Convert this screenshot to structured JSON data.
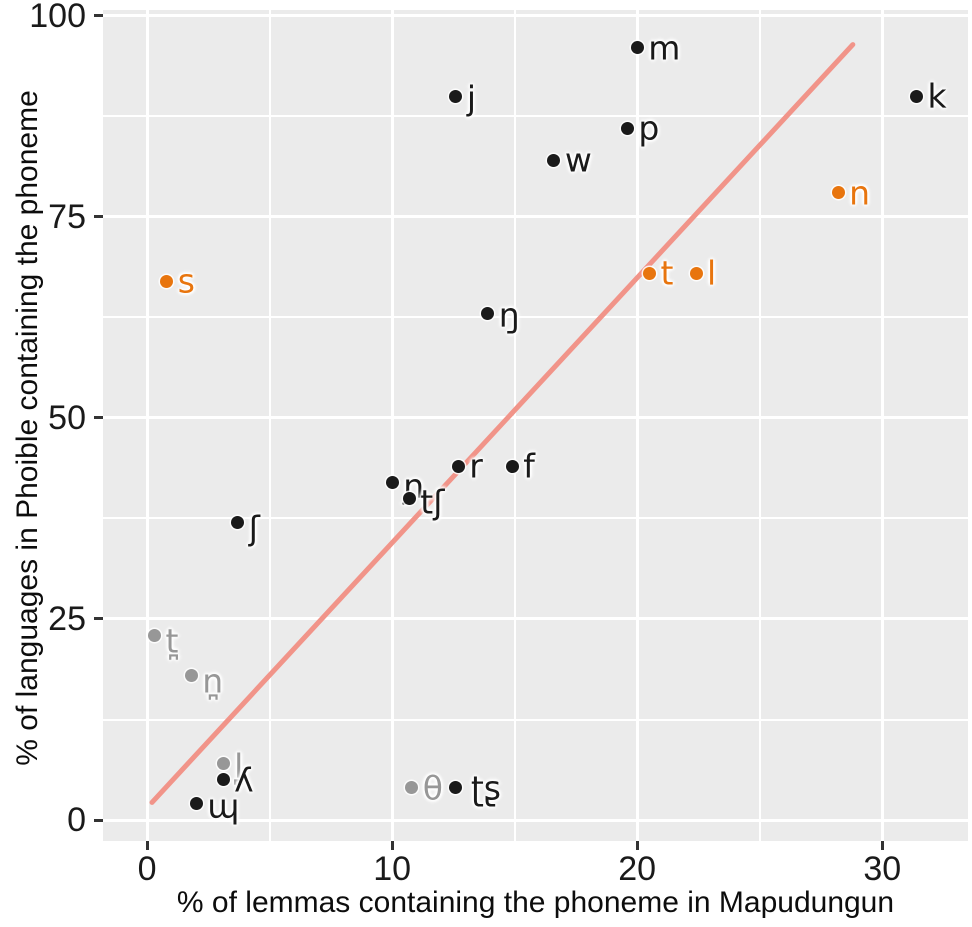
{
  "figure": {
    "background": "#FFFFFF"
  },
  "chart_data": {
    "type": "scatter",
    "title": "",
    "xlabel": "% of lemmas containing the phoneme in Mapudungun",
    "ylabel": "% of languages in Phoible containing the phoneme",
    "xlim": [
      -1.8,
      33.5
    ],
    "ylim": [
      -2.6,
      100.7
    ],
    "x_ticks": [
      0,
      10,
      20,
      30
    ],
    "x_tick_labels": [
      "0",
      "10",
      "20",
      "30"
    ],
    "y_ticks": [
      0,
      25,
      50,
      75,
      100
    ],
    "y_tick_labels": [
      "0",
      "25",
      "50",
      "75",
      "100"
    ],
    "x_minor_ticks": [
      5,
      15,
      25
    ],
    "y_minor_ticks": [
      12.5,
      37.5,
      62.5,
      87.5
    ],
    "grid": true,
    "legend": false,
    "panel_background": "#EBEBEB",
    "grid_color": "#FFFFFF",
    "point_colors": {
      "black": "#1a1a1a",
      "orange": "#E8750E",
      "gray": "#979797"
    },
    "points": [
      {
        "label": "m",
        "x": 20.0,
        "y": 96,
        "group": "black"
      },
      {
        "label": "j",
        "x": 12.6,
        "y": 90,
        "group": "black",
        "label_dy": 2
      },
      {
        "label": "k",
        "x": 31.4,
        "y": 90,
        "group": "black"
      },
      {
        "label": "p",
        "x": 19.6,
        "y": 86,
        "group": "black"
      },
      {
        "label": "w",
        "x": 16.6,
        "y": 82,
        "group": "black"
      },
      {
        "label": "n",
        "x": 28.2,
        "y": 78,
        "group": "orange"
      },
      {
        "label": "t",
        "x": 20.5,
        "y": 68,
        "group": "orange"
      },
      {
        "label": "l",
        "x": 22.4,
        "y": 68,
        "group": "orange"
      },
      {
        "label": "s",
        "x": 0.8,
        "y": 67,
        "group": "orange"
      },
      {
        "label": "ŋ",
        "x": 13.9,
        "y": 63,
        "group": "black",
        "label_dy": 2
      },
      {
        "label": "r",
        "x": 12.7,
        "y": 44,
        "group": "black"
      },
      {
        "label": "f",
        "x": 14.9,
        "y": 44,
        "group": "black"
      },
      {
        "label": "ɲ",
        "x": 10.0,
        "y": 42,
        "group": "black",
        "label_dy": 4
      },
      {
        "label": "tʃ",
        "x": 10.7,
        "y": 40,
        "group": "black",
        "label_dy": 4
      },
      {
        "label": "ʃ",
        "x": 3.7,
        "y": 37,
        "group": "black",
        "label_dy": 6
      },
      {
        "label": "t̪",
        "x": 0.3,
        "y": 23,
        "group": "gray",
        "label_dy": 6
      },
      {
        "label": "n̪",
        "x": 1.8,
        "y": 18,
        "group": "gray",
        "label_dy": 6
      },
      {
        "label": "l̪",
        "x": 3.1,
        "y": 7,
        "group": "gray",
        "label_dy": 2
      },
      {
        "label": "ʎ",
        "x": 3.1,
        "y": 5,
        "group": "black"
      },
      {
        "label": "θ",
        "x": 10.8,
        "y": 4,
        "group": "gray"
      },
      {
        "label": "ʈʂ",
        "x": 12.6,
        "y": 4,
        "group": "black",
        "label_dx": 4
      },
      {
        "label": "ɰ",
        "x": 2.0,
        "y": 2,
        "group": "black",
        "label_dy": 2
      }
    ],
    "trend_line": {
      "x1": 0.2,
      "y1": 2.2,
      "x2": 28.8,
      "y2": 96.4,
      "color": "#F19489",
      "width": 5
    }
  }
}
